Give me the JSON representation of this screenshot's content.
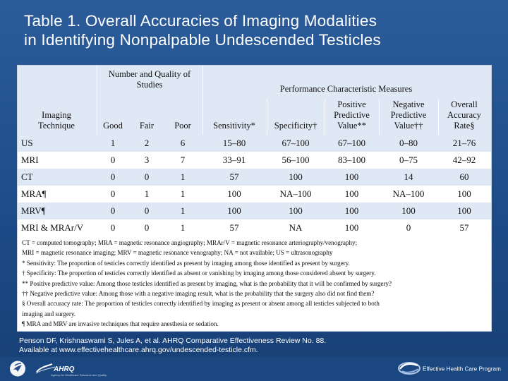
{
  "slide": {
    "title_line_1": "Table 1. Overall Accuracies of Imaging Modalities",
    "title_line_2": "in Identifying Nonpalpable Undescended Testicles"
  },
  "table": {
    "header": {
      "study_group": "Number and Quality of Studies",
      "performance_group": "Performance Characteristic Measures",
      "columns": [
        "Imaging Technique",
        "Good",
        "Fair",
        "Poor",
        "Sensitivity*",
        "Specificity†",
        "Positive Predictive Value**",
        "Negative Predictive Value††",
        "Overall Accuracy Rate§"
      ]
    },
    "rows": [
      [
        "US",
        "1",
        "2",
        "6",
        "15–80",
        "67–100",
        "67–100",
        "0–80",
        "21–76"
      ],
      [
        "MRI",
        "0",
        "3",
        "7",
        "33–91",
        "56–100",
        "83–100",
        "0–75",
        "42–92"
      ],
      [
        "CT",
        "0",
        "0",
        "1",
        "57",
        "100",
        "100",
        "14",
        "60"
      ],
      [
        "MRA¶",
        "0",
        "1",
        "1",
        "100",
        "NA–100",
        "100",
        "NA–100",
        "100"
      ],
      [
        "MRV¶",
        "0",
        "0",
        "1",
        "100",
        "100",
        "100",
        "100",
        "100"
      ],
      [
        "MRI & MRAr/V",
        "0",
        "0",
        "1",
        "57",
        "NA",
        "100",
        "0",
        "57"
      ]
    ]
  },
  "footnotes": [
    "CT = computed tomography; MRA = magnetic resonance angiography; MRAr/V = magnetic resonance arteriography/venography;",
    "MRI = magnetic resonance imaging; MRV = magnetic resonance venography; NA = not available; US = ultrasonography",
    "* Sensitivity: The proportion of testicles correctly identified as present by imaging among those identified as present by surgery.",
    "† Specificity: The proportion of testicles correctly identified as absent or vanishing by imaging among those considered absent by surgery.",
    "** Positive predictive value: Among those testicles identified as present by imaging, what is the probability that it will be confirmed by surgery?",
    "†† Negative predictive value: Among those with a negative imaging result, what is the probability that the surgery also did not find them?",
    "§ Overall accuracy rate: The proportion of testicles correctly identified by imaging as present or absent among all testicles subjected to both",
    "imaging and surgery.",
    "¶ MRA and MRV are invasive techniques that require anesthesia or sedation."
  ],
  "citation": {
    "line_1": "Penson DF, Krishnaswami S, Jules A, et al. AHRQ Comparative Effectiveness Review No. 88.",
    "line_2": "Available at www.effectivehealthcare.ahrq.gov/undescended-testicle.cfm."
  },
  "logos": {
    "left_logo_text": "AHRQ",
    "left_logo_subtext": "Agency for Healthcare Research and Quality",
    "right_logo_text": "Effective Health Care Program"
  },
  "icons": {
    "hhs_emblem": "hhs-eagle-emblem-icon",
    "ahrq_mark": "ahrq-logo-mark-icon",
    "ehc_mark": "effective-health-care-swirl-icon"
  },
  "colors": {
    "slide_blue": "#1f4a86",
    "table_band": "#dfe8f5",
    "white": "#ffffff"
  }
}
